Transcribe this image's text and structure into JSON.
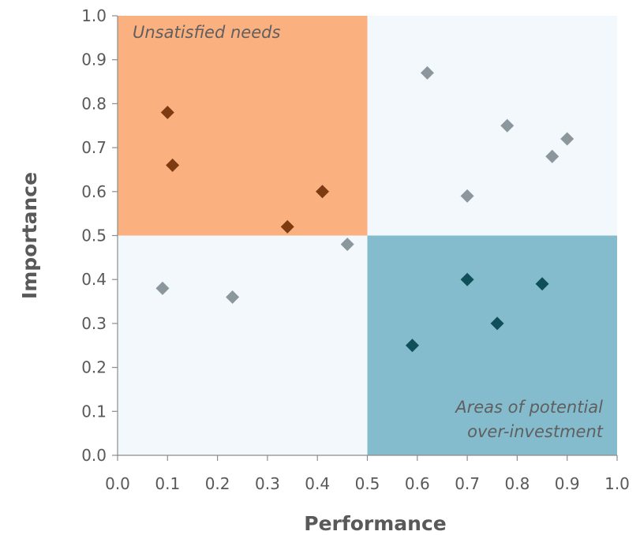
{
  "chart_data": {
    "type": "scatter",
    "title": "",
    "xlabel": "Performance",
    "ylabel": "Importance",
    "xlim": [
      0.0,
      1.0
    ],
    "ylim": [
      0.0,
      1.0
    ],
    "x_ticks": [
      "0.0",
      "0.1",
      "0.2",
      "0.3",
      "0.4",
      "0.5",
      "0.6",
      "0.7",
      "0.8",
      "0.9",
      "1.0"
    ],
    "y_ticks": [
      "0.0",
      "0.1",
      "0.2",
      "0.3",
      "0.4",
      "0.5",
      "0.6",
      "0.7",
      "0.8",
      "0.9",
      "1.0"
    ],
    "grid": false,
    "marker": "diamond",
    "regions": [
      {
        "label": "Unsatisfied needs",
        "x_range": [
          0.0,
          0.5
        ],
        "y_range": [
          0.5,
          1.0
        ],
        "color": "#fbb07f"
      },
      {
        "label": "Areas of potential over-investment",
        "x_range": [
          0.5,
          1.0
        ],
        "y_range": [
          0.0,
          0.5
        ],
        "color": "#85bccd"
      },
      {
        "label": "",
        "x_range": [
          0.0,
          0.5
        ],
        "y_range": [
          0.0,
          0.5
        ],
        "color": "#f3f8fc"
      },
      {
        "label": "",
        "x_range": [
          0.5,
          1.0
        ],
        "y_range": [
          0.5,
          1.0
        ],
        "color": "#f3f8fc"
      }
    ],
    "series": [
      {
        "color": "#7e3b12",
        "points": [
          {
            "x": 0.1,
            "y": 0.78
          },
          {
            "x": 0.11,
            "y": 0.66
          },
          {
            "x": 0.34,
            "y": 0.52
          },
          {
            "x": 0.41,
            "y": 0.6
          }
        ]
      },
      {
        "color": "#0e4f59",
        "points": [
          {
            "x": 0.59,
            "y": 0.25
          },
          {
            "x": 0.7,
            "y": 0.4
          },
          {
            "x": 0.76,
            "y": 0.3
          },
          {
            "x": 0.85,
            "y": 0.39
          }
        ]
      },
      {
        "color": "#8c979d",
        "points": [
          {
            "x": 0.09,
            "y": 0.38
          },
          {
            "x": 0.23,
            "y": 0.36
          },
          {
            "x": 0.46,
            "y": 0.48
          },
          {
            "x": 0.62,
            "y": 0.87
          },
          {
            "x": 0.7,
            "y": 0.59
          },
          {
            "x": 0.78,
            "y": 0.75
          },
          {
            "x": 0.87,
            "y": 0.68
          },
          {
            "x": 0.9,
            "y": 0.72
          }
        ]
      }
    ]
  }
}
